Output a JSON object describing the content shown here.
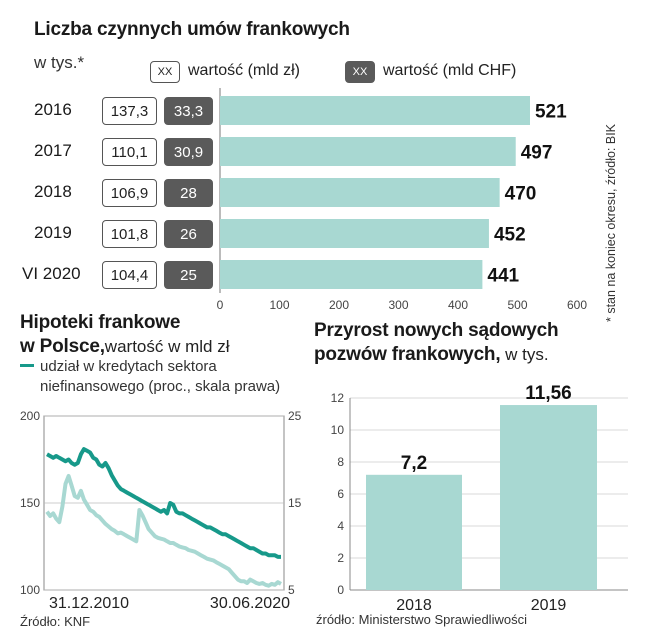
{
  "colors": {
    "bar": "#a8d8d2",
    "dark_line": "#17998a",
    "light_line": "#a8d8d2",
    "dark_box": "#5a5a5a"
  },
  "top": {
    "title": "Liczba czynnych umów frankowych",
    "subtitle": "w tys.*",
    "legend_light_box": "XX",
    "legend_light_label": "wartość (mld zł)",
    "legend_dark_box": "XX",
    "legend_dark_label": "wartość (mld CHF)",
    "side_note": "* stan na koniec okresu, źródło: BIK",
    "rows": [
      {
        "label": "2016",
        "pln": "137,3",
        "chf": "33,3",
        "count_text": "521"
      },
      {
        "label": "2017",
        "pln": "110,1",
        "chf": "30,9",
        "count_text": "497"
      },
      {
        "label": "2018",
        "pln": "106,9",
        "chf": "28",
        "count_text": "470"
      },
      {
        "label": "2019",
        "pln": "101,8",
        "chf": "26",
        "count_text": "452"
      },
      {
        "label": "VI 2020",
        "pln": "104,4",
        "chf": "25",
        "count_text": "441"
      }
    ]
  },
  "left": {
    "title_line1": "Hipoteki frankowe",
    "title_line2_bold": "w Polsce,",
    "title_line2_rest": "wartość w mld zł",
    "legend_line1": "udział w kredytach sektora",
    "legend_line2": "niefinansowego (proc., skala prawa)",
    "source": "Źródło: KNF"
  },
  "right": {
    "title_line1": "Przyrost nowych sądowych",
    "title_line2_bold": "pozwów frankowych,",
    "title_line2_rest": " w tys.",
    "source": "źródło: Ministerstwo Sprawiedliwości"
  },
  "chart_data": [
    {
      "type": "bar",
      "orientation": "horizontal",
      "title": "Liczba czynnych umów frankowych",
      "unit": "w tys.",
      "categories": [
        "2016",
        "2017",
        "2018",
        "2019",
        "VI 2020"
      ],
      "values": [
        521,
        497,
        470,
        452,
        441
      ],
      "xlim": [
        0,
        600
      ],
      "xticks": [
        "0",
        "100",
        "200",
        "300",
        "400",
        "500",
        "600"
      ]
    },
    {
      "type": "line",
      "title": "Hipoteki frankowe w Polsce, wartość w mld zł",
      "x_start_label": "31.12.2010",
      "x_end_label": "30.06.2020",
      "ylim_left": [
        100,
        200
      ],
      "yticks_left": [
        "100",
        "150",
        "200"
      ],
      "ylim_right": [
        5,
        25
      ],
      "yticks_right": [
        "5",
        "15",
        "25"
      ],
      "series": [
        {
          "name": "wartość (mld zł)",
          "axis": "left",
          "values": [
            178,
            177,
            176,
            177,
            176,
            175,
            174,
            175,
            173,
            172,
            173,
            178,
            181,
            180,
            179,
            176,
            175,
            172,
            171,
            173,
            170,
            166,
            163,
            160,
            158,
            157,
            156,
            155,
            154,
            153,
            152,
            151,
            150,
            149,
            148,
            147,
            146,
            145,
            146,
            144,
            150,
            149,
            145,
            144,
            144,
            143,
            142,
            141,
            140,
            139,
            138,
            137,
            136,
            136,
            135,
            134,
            133,
            132,
            132,
            131,
            130,
            129,
            128,
            127,
            126,
            125,
            124,
            124,
            123,
            122,
            121,
            121,
            120,
            120,
            120,
            119,
            119
          ]
        },
        {
          "name": "udział w kredytach sektora niefinansowego (proc., skala prawa)",
          "axis": "right",
          "values": [
            14.0,
            13.5,
            13.8,
            13.2,
            12.8,
            14.6,
            17.2,
            18.1,
            17.0,
            15.8,
            15.6,
            16.4,
            15.4,
            14.8,
            14.2,
            14.0,
            13.6,
            13.4,
            13.0,
            12.6,
            12.3,
            12.0,
            11.8,
            11.5,
            11.6,
            11.4,
            11.2,
            11.0,
            10.8,
            10.6,
            14.2,
            13.6,
            12.8,
            12.0,
            11.6,
            11.2,
            11.0,
            10.9,
            10.8,
            10.6,
            10.4,
            10.4,
            10.2,
            10.0,
            9.9,
            9.8,
            9.6,
            9.5,
            9.4,
            9.2,
            9.0,
            8.8,
            8.6,
            8.5,
            8.4,
            8.2,
            8.0,
            7.8,
            7.6,
            7.4,
            7.0,
            6.6,
            6.2,
            6.0,
            6.0,
            5.8,
            6.2,
            6.0,
            5.8,
            5.7,
            5.8,
            5.6,
            5.5,
            5.7,
            5.6,
            5.9,
            5.7
          ]
        }
      ]
    },
    {
      "type": "bar",
      "title": "Przyrost nowych sądowych pozwów frankowych, w tys.",
      "categories": [
        "2018",
        "2019"
      ],
      "values": [
        7.2,
        11.56
      ],
      "value_labels": [
        "7,2",
        "11,56"
      ],
      "ylim": [
        0,
        12
      ],
      "yticks": [
        "0",
        "2",
        "4",
        "6",
        "8",
        "10",
        "12"
      ]
    }
  ]
}
